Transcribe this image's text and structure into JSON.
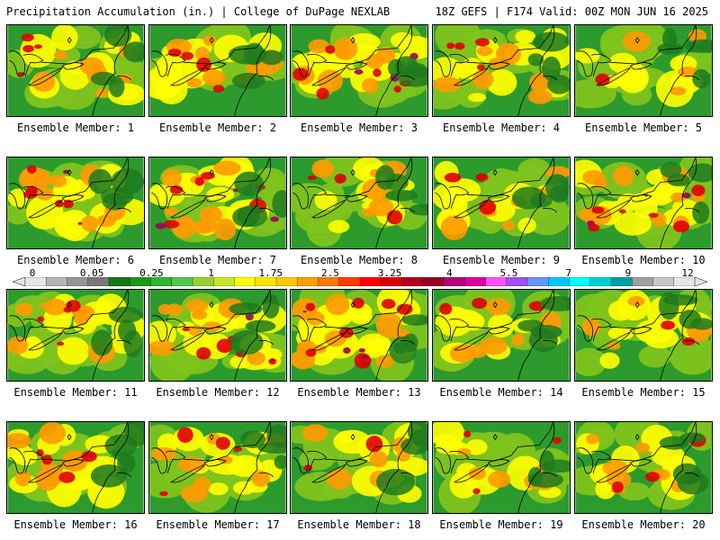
{
  "header": {
    "title": "Precipitation Accumulation (in.) | College of DuPage NEXLAB",
    "run_info": "18Z GEFS | F174 Valid: 00Z MON JUN 16 2025"
  },
  "panels": [
    {
      "label": "Ensemble Member: 1",
      "intensity": 0.45
    },
    {
      "label": "Ensemble Member: 2",
      "intensity": 0.55
    },
    {
      "label": "Ensemble Member: 3",
      "intensity": 0.75
    },
    {
      "label": "Ensemble Member: 4",
      "intensity": 0.45
    },
    {
      "label": "Ensemble Member: 5",
      "intensity": 0.15
    },
    {
      "label": "Ensemble Member: 6",
      "intensity": 0.65
    },
    {
      "label": "Ensemble Member: 7",
      "intensity": 0.8
    },
    {
      "label": "Ensemble Member: 8",
      "intensity": 0.35
    },
    {
      "label": "Ensemble Member: 9",
      "intensity": 0.35
    },
    {
      "label": "Ensemble Member: 10",
      "intensity": 0.8
    },
    {
      "label": "Ensemble Member: 11",
      "intensity": 0.55
    },
    {
      "label": "Ensemble Member: 12",
      "intensity": 0.7
    },
    {
      "label": "Ensemble Member: 13",
      "intensity": 0.85
    },
    {
      "label": "Ensemble Member: 14",
      "intensity": 0.4
    },
    {
      "label": "Ensemble Member: 15",
      "intensity": 0.3
    },
    {
      "label": "Ensemble Member: 16",
      "intensity": 0.55
    },
    {
      "label": "Ensemble Member: 17",
      "intensity": 0.5
    },
    {
      "label": "Ensemble Member: 18",
      "intensity": 0.3
    },
    {
      "label": "Ensemble Member: 19",
      "intensity": 0.35
    },
    {
      "label": "Ensemble Member: 20",
      "intensity": 0.45
    }
  ],
  "colorbar": {
    "tick_labels": [
      "0",
      "0.05",
      "0.25",
      "1",
      "1.75",
      "2.5",
      "3.25",
      "4",
      "5.5",
      "7",
      "9",
      "12"
    ],
    "colors": [
      "#e6e6e6",
      "#b4b4b4",
      "#969696",
      "#787878",
      "#147814",
      "#1e961e",
      "#32b432",
      "#50c850",
      "#96d232",
      "#c8e628",
      "#ffff00",
      "#ffe600",
      "#ffc800",
      "#ffa000",
      "#ff7800",
      "#ff3c00",
      "#ff0000",
      "#dc0000",
      "#b4001e",
      "#960028",
      "#b40078",
      "#dc00a0",
      "#ff50ff",
      "#a050ff",
      "#6496ff",
      "#00c8ff",
      "#00ffff",
      "#00d2d2",
      "#00a0a0",
      "#a0a0a0",
      "#c8c8c8",
      "#e6e6e6"
    ]
  },
  "colors": {
    "land_base": "#2d9a2d",
    "low_rain": "#7fc31e",
    "mid_rain": "#ffff00",
    "high_rain": "#ff9a00",
    "heavy_rain": "#e00000",
    "extreme_rain": "#a0005a",
    "border": "#000000"
  }
}
